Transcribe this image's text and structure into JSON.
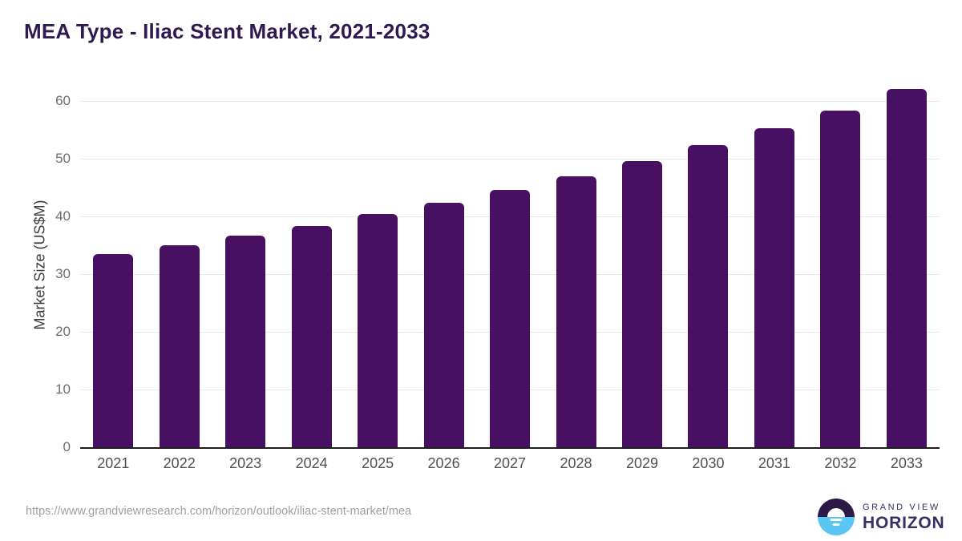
{
  "header": {
    "title_color": "#2e1a50"
  },
  "chart_data": {
    "type": "bar",
    "title": "MEA Type - Iliac Stent Market, 2021-2033",
    "categories": [
      "2021",
      "2022",
      "2023",
      "2024",
      "2025",
      "2026",
      "2027",
      "2028",
      "2029",
      "2030",
      "2031",
      "2032",
      "2033"
    ],
    "values": [
      33.5,
      35.0,
      36.6,
      38.4,
      40.4,
      42.4,
      44.6,
      46.9,
      49.6,
      52.4,
      55.3,
      58.3,
      62.1
    ],
    "xlabel": "",
    "ylabel": "Market Size (US$M)",
    "ylim": [
      0,
      65
    ],
    "yticks": [
      0,
      10,
      20,
      30,
      40,
      50,
      60
    ],
    "bar_color": "#471063",
    "grid": "horizontal",
    "legend": "none"
  },
  "footer": {
    "source_url": "https://www.grandviewresearch.com/horizon/outlook/iliac-stent-market/mea"
  },
  "logo": {
    "line1": "GRAND VIEW",
    "line2": "HORIZON",
    "circle_top_color": "#2d1846",
    "circle_bottom_color": "#5ac6f1",
    "text_color": "#3b2d66"
  }
}
